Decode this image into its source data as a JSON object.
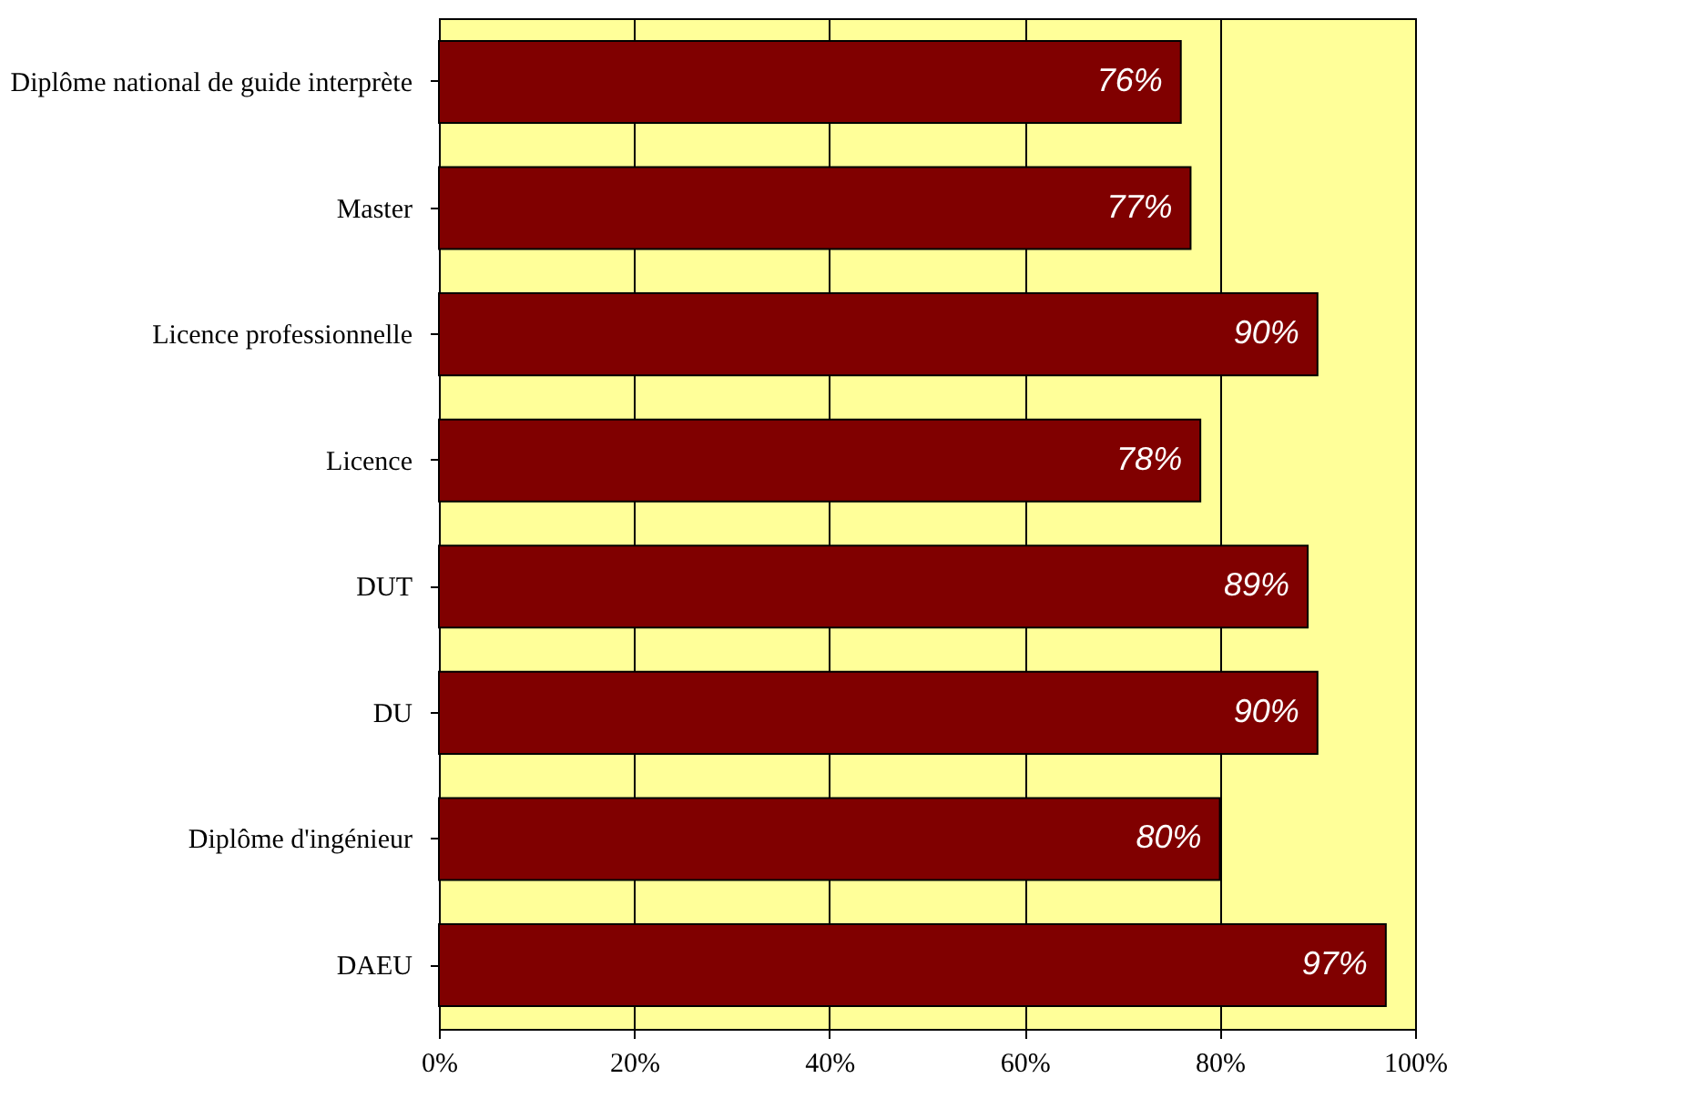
{
  "chart_data": {
    "type": "bar",
    "orientation": "horizontal",
    "categories": [
      "Diplôme national de guide interprète",
      "Master",
      "Licence professionnelle",
      "Licence",
      "DUT",
      "DU",
      "Diplôme d'ingénieur",
      "DAEU"
    ],
    "values": [
      76,
      77,
      90,
      78,
      89,
      90,
      80,
      97
    ],
    "value_labels": [
      "76%",
      "77%",
      "90%",
      "78%",
      "89%",
      "90%",
      "80%",
      "97%"
    ],
    "color": "#800000",
    "xlim": [
      0,
      100
    ],
    "xticks": [
      {
        "value": 0,
        "label": "0%"
      },
      {
        "value": 20,
        "label": "20%"
      },
      {
        "value": 40,
        "label": "40%"
      },
      {
        "value": 60,
        "label": "60%"
      },
      {
        "value": 80,
        "label": "80%"
      },
      {
        "value": 100,
        "label": "100%"
      }
    ],
    "grid": "x"
  }
}
